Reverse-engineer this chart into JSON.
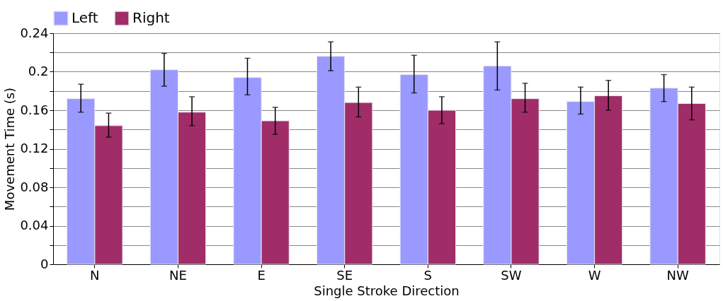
{
  "chart_data": {
    "type": "bar",
    "xlabel": "Single Stroke Direction",
    "ylabel": "Movement Time (s)",
    "categories": [
      "N",
      "NE",
      "E",
      "SE",
      "S",
      "SW",
      "W",
      "NW"
    ],
    "series": [
      {
        "name": "Left",
        "color": "#9999ff",
        "values": [
          0.172,
          0.202,
          0.194,
          0.216,
          0.197,
          0.206,
          0.169,
          0.183
        ],
        "errors": [
          [
            0.158,
            0.187
          ],
          [
            0.185,
            0.219
          ],
          [
            0.176,
            0.214
          ],
          [
            0.201,
            0.231
          ],
          [
            0.178,
            0.217
          ],
          [
            0.181,
            0.231
          ],
          [
            0.156,
            0.184
          ],
          [
            0.169,
            0.197
          ]
        ]
      },
      {
        "name": "Right",
        "color": "#a02d68",
        "values": [
          0.144,
          0.158,
          0.149,
          0.168,
          0.16,
          0.172,
          0.175,
          0.167
        ],
        "errors": [
          [
            0.132,
            0.157
          ],
          [
            0.144,
            0.174
          ],
          [
            0.135,
            0.163
          ],
          [
            0.153,
            0.184
          ],
          [
            0.146,
            0.174
          ],
          [
            0.158,
            0.188
          ],
          [
            0.16,
            0.191
          ],
          [
            0.15,
            0.184
          ]
        ]
      }
    ],
    "ylim": [
      0,
      0.24
    ],
    "yticks": [
      0,
      {
        "value": 0.02,
        "label": null
      },
      0.04,
      {
        "value": 0.06,
        "label": null
      },
      0.08,
      {
        "value": 0.1,
        "label": null
      },
      0.12,
      {
        "value": 0.14,
        "label": null
      },
      0.16,
      {
        "value": 0.18,
        "label": null
      },
      0.2,
      {
        "value": 0.22,
        "label": null
      },
      0.24
    ],
    "grid": "y",
    "legend": "top left"
  }
}
